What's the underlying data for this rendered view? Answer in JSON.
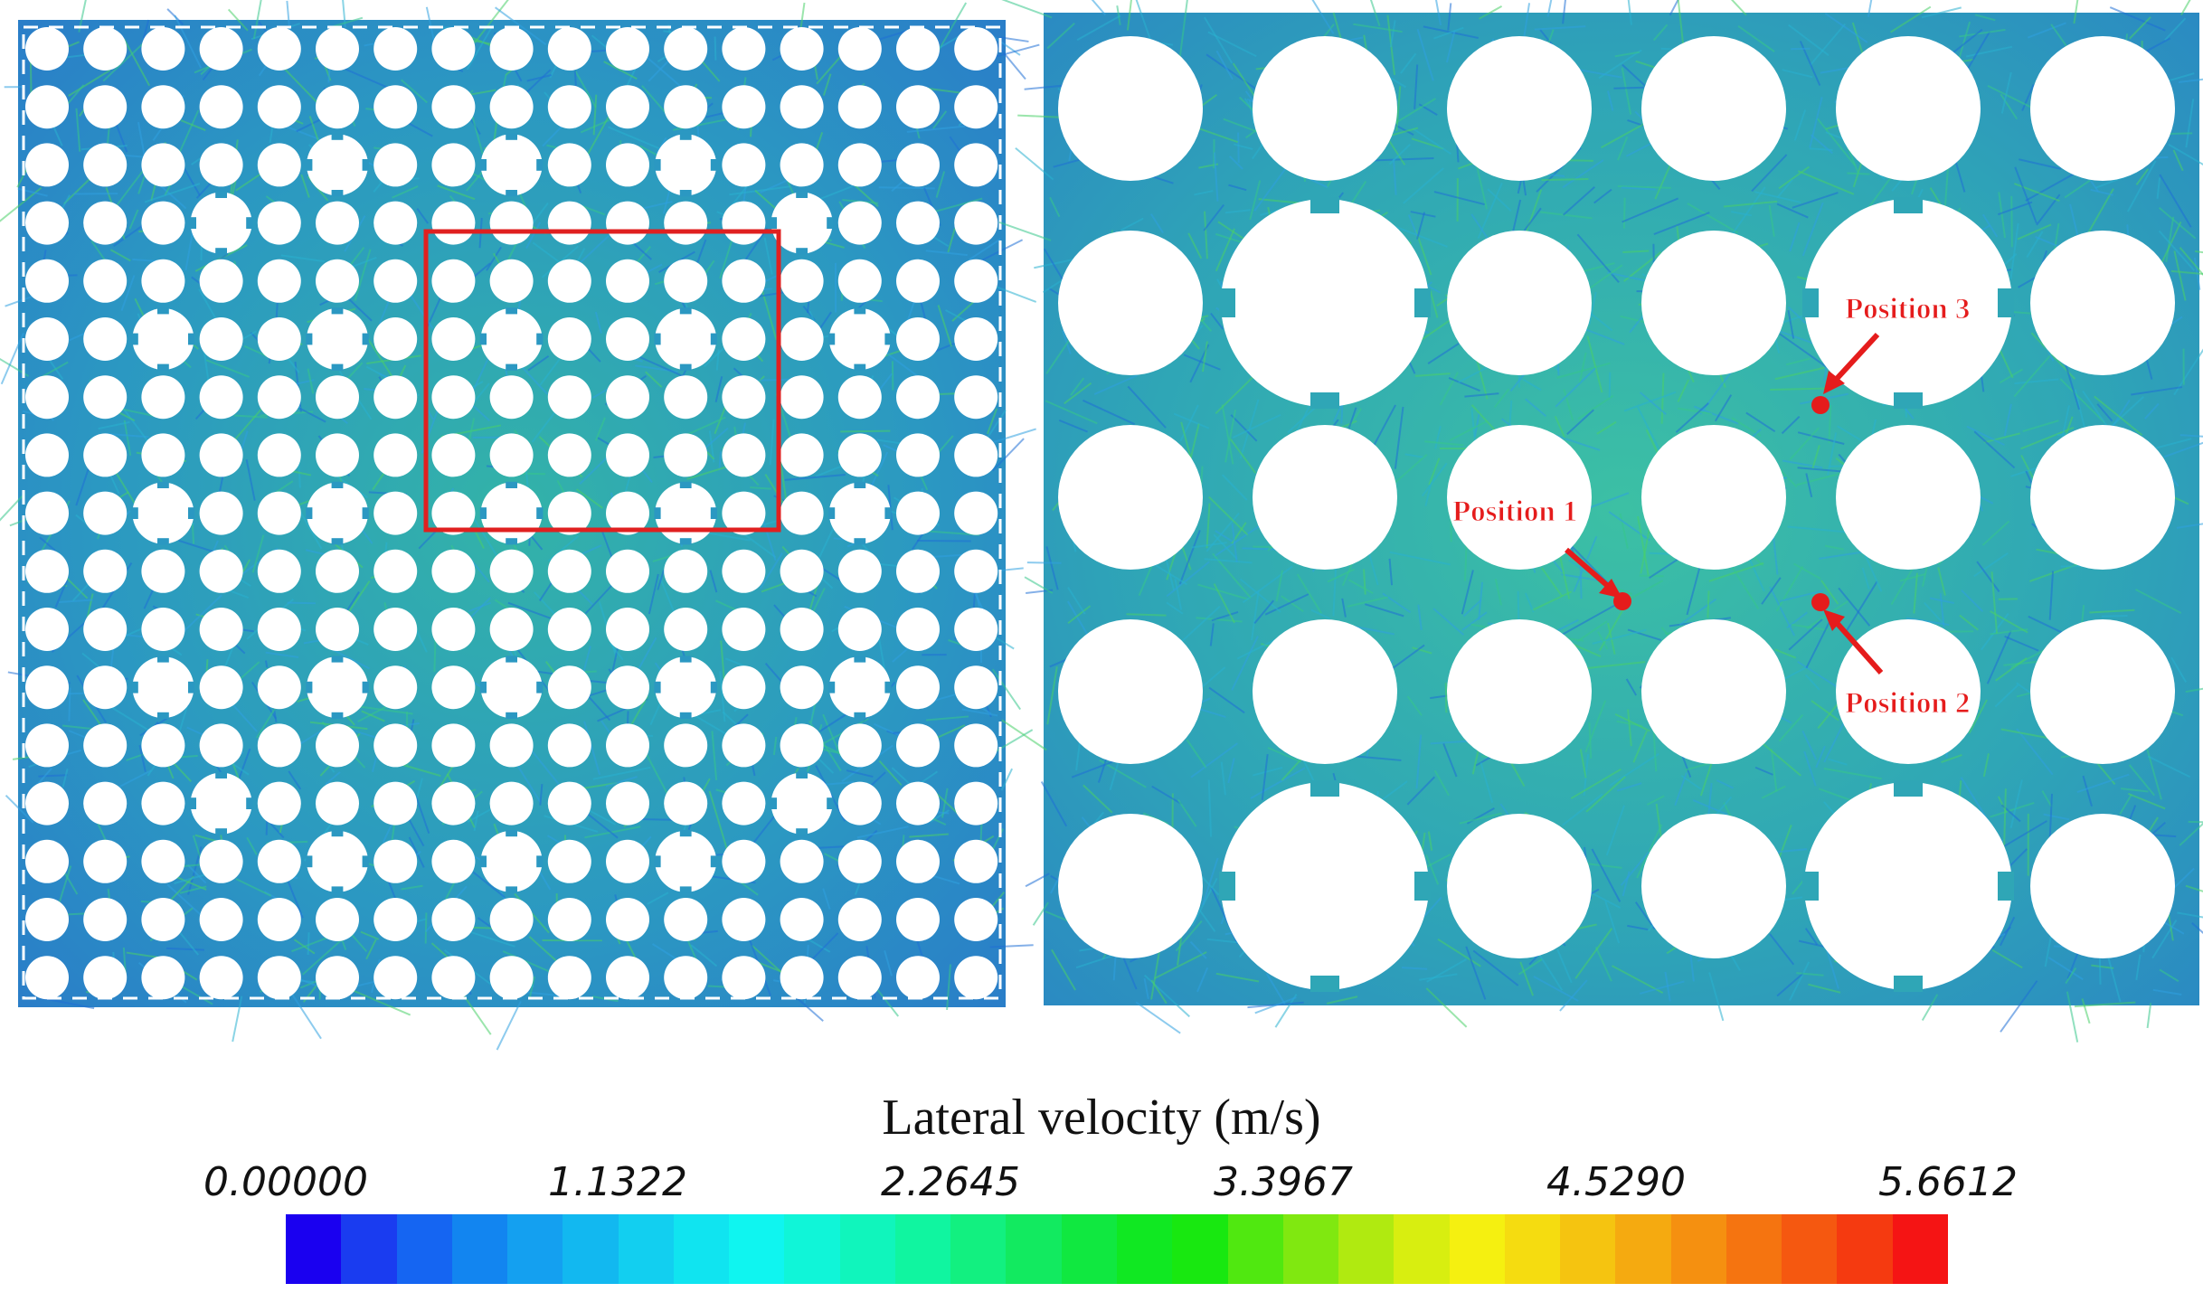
{
  "legend": {
    "title": "Lateral velocity (m/s)",
    "ticks": [
      "0.00000",
      "1.1322",
      "2.2645",
      "3.3967",
      "4.5290",
      "5.6612"
    ],
    "min": 0.0,
    "max": 5.6612,
    "colors": [
      "#1a00f0",
      "#1a3cf0",
      "#1565f2",
      "#1285f0",
      "#14a0f0",
      "#12b8f0",
      "#12cff0",
      "#10e4f0",
      "#0ff5f0",
      "#10f5d8",
      "#10f5bc",
      "#10f5a0",
      "#12f080",
      "#12ea60",
      "#10e840",
      "#10e822",
      "#18e810",
      "#50e810",
      "#80e810",
      "#b0ea10",
      "#d8ee10",
      "#f5f010",
      "#f5dc10",
      "#f5c410",
      "#f5aa10",
      "#f59010",
      "#f57410",
      "#f55810",
      "#f53a10",
      "#f51414"
    ]
  },
  "left_panel": {
    "grid": 17,
    "highlight_box_color": "#e02020",
    "background_color": "#2f9fc0"
  },
  "right_panel": {
    "background_color": "#2fa4b8",
    "markers": [
      {
        "label": "Position 1"
      },
      {
        "label": "Position 2"
      },
      {
        "label": "Position 3"
      }
    ],
    "marker_color": "#e51c1c"
  }
}
